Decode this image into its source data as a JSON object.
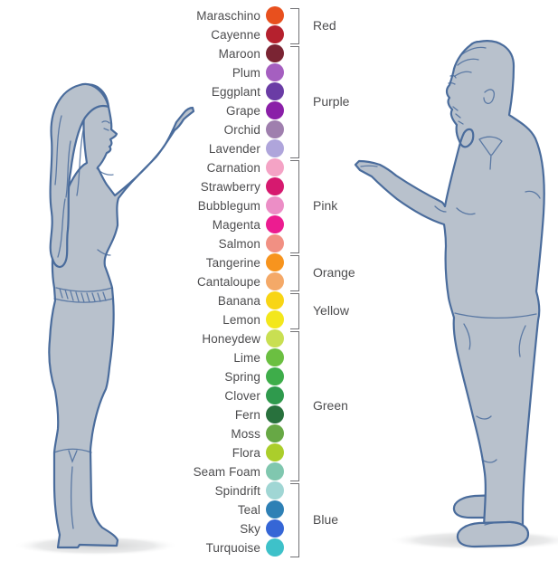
{
  "style": {
    "text_color": "#4d4d4f",
    "bracket_color": "#717174",
    "figure_fill": "#b8c1cc",
    "figure_outline": "#4a6c9c",
    "shadow_color": "#c9cacb"
  },
  "palette": {
    "rows": [
      {
        "name": "Maraschino",
        "color": "#E8501E"
      },
      {
        "name": "Cayenne",
        "color": "#B5212E"
      },
      {
        "name": "Maroon",
        "color": "#7A2433"
      },
      {
        "name": "Plum",
        "color": "#A55FC0"
      },
      {
        "name": "Eggplant",
        "color": "#6A3CA5"
      },
      {
        "name": "Grape",
        "color": "#8A1FA8"
      },
      {
        "name": "Orchid",
        "color": "#9F7FAE"
      },
      {
        "name": "Lavender",
        "color": "#AFA5DB"
      },
      {
        "name": "Carnation",
        "color": "#F4A3C5"
      },
      {
        "name": "Strawberry",
        "color": "#D6196F"
      },
      {
        "name": "Bubblegum",
        "color": "#EC8EC6"
      },
      {
        "name": "Magenta",
        "color": "#EC1C90"
      },
      {
        "name": "Salmon",
        "color": "#F19083"
      },
      {
        "name": "Tangerine",
        "color": "#F7941E"
      },
      {
        "name": "Cantaloupe",
        "color": "#F4A968"
      },
      {
        "name": "Banana",
        "color": "#F8D515"
      },
      {
        "name": "Lemon",
        "color": "#F3E71C"
      },
      {
        "name": "Honeydew",
        "color": "#C9DF52"
      },
      {
        "name": "Lime",
        "color": "#6BBF41"
      },
      {
        "name": "Spring",
        "color": "#3EAD4A"
      },
      {
        "name": "Clover",
        "color": "#2F9A4D"
      },
      {
        "name": "Fern",
        "color": "#28713D"
      },
      {
        "name": "Moss",
        "color": "#67A845"
      },
      {
        "name": "Flora",
        "color": "#ABCE2B"
      },
      {
        "name": "Seam Foam",
        "color": "#80C7AF"
      },
      {
        "name": "Spindrift",
        "color": "#A0D6D4"
      },
      {
        "name": "Teal",
        "color": "#2E80B5"
      },
      {
        "name": "Sky",
        "color": "#3566D6"
      },
      {
        "name": "Turquoise",
        "color": "#3EC1C9"
      }
    ],
    "groups": [
      {
        "label": "Red",
        "start": 0,
        "count": 2
      },
      {
        "label": "Purple",
        "start": 2,
        "count": 6
      },
      {
        "label": "Pink",
        "start": 8,
        "count": 5
      },
      {
        "label": "Orange",
        "start": 13,
        "count": 2
      },
      {
        "label": "Yellow",
        "start": 15,
        "count": 2
      },
      {
        "label": "Green",
        "start": 17,
        "count": 8
      },
      {
        "label": "Blue",
        "start": 25,
        "count": 4
      }
    ]
  },
  "figures": {
    "left": "woman-pointing-at-color-list",
    "right": "man-pointing-at-color-list"
  }
}
